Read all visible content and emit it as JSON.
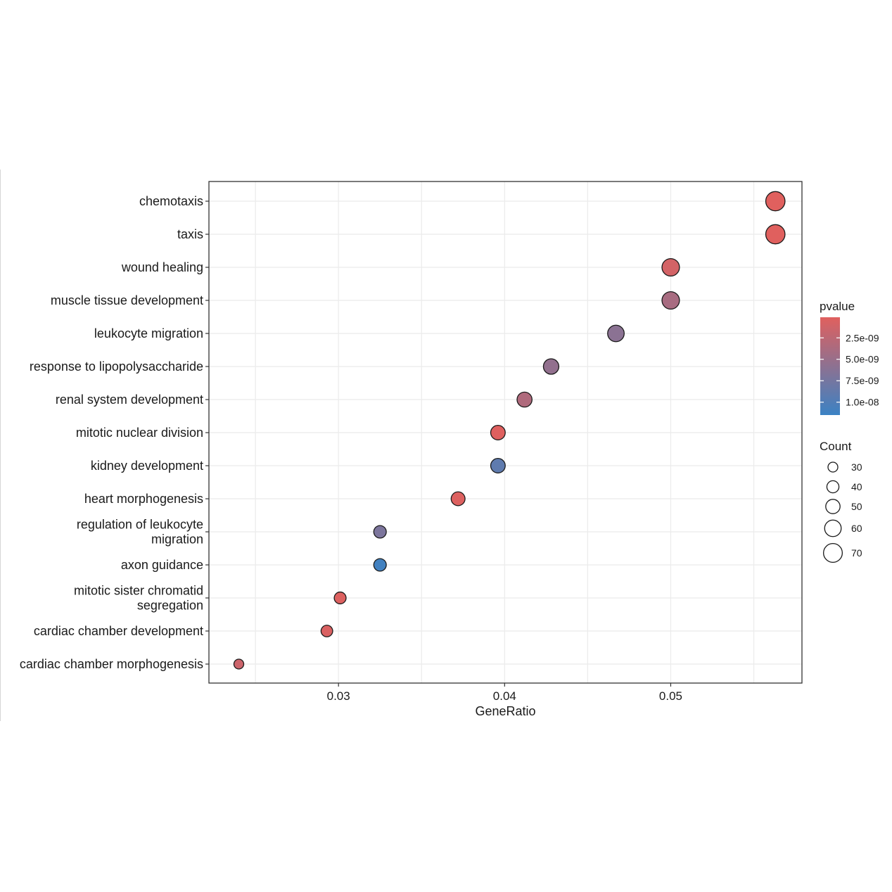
{
  "chart_data": {
    "type": "scatter",
    "xlabel": "GeneRatio",
    "ylabel": "",
    "xlim": [
      0.0222,
      0.0579
    ],
    "xticks": [
      0.03,
      0.04,
      0.05
    ],
    "xtick_labels": [
      "0.03",
      "0.04",
      "0.05"
    ],
    "grid": true,
    "points": [
      {
        "label": "chemotaxis",
        "label_lines": [
          "chemotaxis"
        ],
        "x": 0.0563,
        "pvalue": 1e-10,
        "count": 72
      },
      {
        "label": "taxis",
        "label_lines": [
          "taxis"
        ],
        "x": 0.0563,
        "pvalue": 1e-10,
        "count": 72
      },
      {
        "label": "wound healing",
        "label_lines": [
          "wound healing"
        ],
        "x": 0.05,
        "pvalue": 1e-09,
        "count": 64
      },
      {
        "label": "muscle tissue development",
        "label_lines": [
          "muscle tissue development"
        ],
        "x": 0.05,
        "pvalue": 4e-09,
        "count": 64
      },
      {
        "label": "leukocyte migration",
        "label_lines": [
          "leukocyte migration"
        ],
        "x": 0.0467,
        "pvalue": 6e-09,
        "count": 60
      },
      {
        "label": "response to lipopolysaccharide",
        "label_lines": [
          "response to lipopolysaccharide"
        ],
        "x": 0.0428,
        "pvalue": 5.5e-09,
        "count": 55
      },
      {
        "label": "renal system development",
        "label_lines": [
          "renal system development"
        ],
        "x": 0.0412,
        "pvalue": 3.5e-09,
        "count": 53
      },
      {
        "label": "mitotic nuclear division",
        "label_lines": [
          "mitotic nuclear division"
        ],
        "x": 0.0396,
        "pvalue": 2e-10,
        "count": 51
      },
      {
        "label": "kidney development",
        "label_lines": [
          "kidney development"
        ],
        "x": 0.0396,
        "pvalue": 9e-09,
        "count": 51
      },
      {
        "label": "heart morphogenesis",
        "label_lines": [
          "heart morphogenesis"
        ],
        "x": 0.0372,
        "pvalue": 3e-10,
        "count": 48
      },
      {
        "label": "regulation of leukocyte migration",
        "label_lines": [
          "regulation of leukocyte",
          "migration"
        ],
        "x": 0.0325,
        "pvalue": 7e-09,
        "count": 42
      },
      {
        "label": "axon guidance",
        "label_lines": [
          "axon guidance"
        ],
        "x": 0.0325,
        "pvalue": 1.1e-08,
        "count": 42
      },
      {
        "label": "mitotic sister chromatid segregation",
        "label_lines": [
          "mitotic sister chromatid",
          "segregation"
        ],
        "x": 0.0301,
        "pvalue": 3e-10,
        "count": 39
      },
      {
        "label": "cardiac chamber development",
        "label_lines": [
          "cardiac chamber development"
        ],
        "x": 0.0293,
        "pvalue": 5e-10,
        "count": 38
      },
      {
        "label": "cardiac chamber morphogenesis",
        "label_lines": [
          "cardiac chamber morphogenesis"
        ],
        "x": 0.024,
        "pvalue": 1.5e-09,
        "count": 30
      }
    ],
    "color_legend": {
      "title": "pvalue",
      "low_color": "#e0605e",
      "high_color": "#3b82c4",
      "range": [
        1e-10,
        1.15e-08
      ],
      "ticks": [
        2.5e-09,
        5e-09,
        7.5e-09,
        1e-08
      ],
      "tick_labels": [
        "2.5e-09",
        "5.0e-09",
        "7.5e-09",
        "1.0e-08"
      ]
    },
    "size_legend": {
      "title": "Count",
      "values": [
        30,
        40,
        50,
        60,
        70
      ],
      "labels": [
        "30",
        "40",
        "50",
        "60",
        "70"
      ]
    },
    "legend_position": "right"
  }
}
